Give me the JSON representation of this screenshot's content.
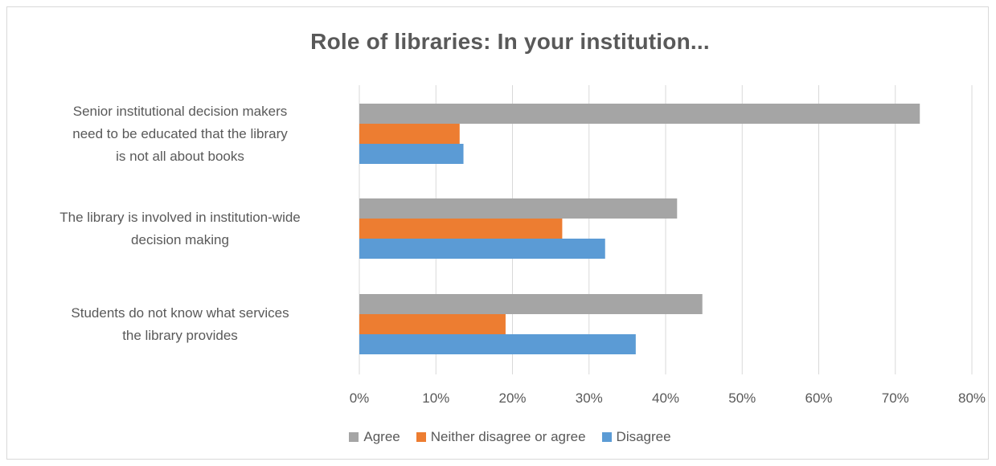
{
  "chart_data": {
    "type": "bar",
    "orientation": "horizontal",
    "title": "Role of libraries: In your institution...",
    "categories": [
      "Senior institutional decision makers need to be educated that the library is not all about books",
      "The library is involved in institution-wide decision making",
      "Students do not know what services the library provides"
    ],
    "category_lines": [
      [
        "Senior institutional decision makers",
        "need to be educated that the library",
        "is not all about books"
      ],
      [
        "The library is involved in institution-wide",
        "decision making"
      ],
      [
        "Students do not know what services",
        "the library provides"
      ]
    ],
    "series": [
      {
        "name": "Agree",
        "color": "#a5a5a5",
        "values": [
          73.2,
          41.5,
          44.8
        ]
      },
      {
        "name": "Neither disagree or agree",
        "color": "#ed7d31",
        "values": [
          13.1,
          26.5,
          19.1
        ]
      },
      {
        "name": "Disagree",
        "color": "#5b9bd5",
        "values": [
          13.6,
          32.1,
          36.1
        ]
      }
    ],
    "xlim": [
      0,
      80
    ],
    "xticks": [
      "0%",
      "10%",
      "20%",
      "30%",
      "40%",
      "50%",
      "60%",
      "70%",
      "80%"
    ],
    "xlabel": "",
    "ylabel": "",
    "grid": true,
    "legend_position": "bottom"
  }
}
